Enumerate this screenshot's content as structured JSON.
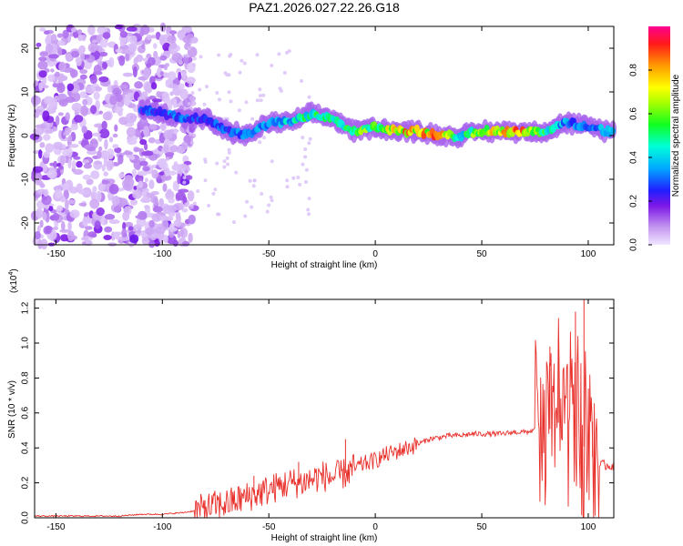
{
  "figure_title": "PAZ1.2026.027.22.26.G18",
  "chart_data": [
    {
      "type": "heatmap",
      "title": "PAZ1.2026.027.22.26.G18",
      "xlabel": "Height of straight line (km)",
      "ylabel": "Frequency (Hz)",
      "xlim": [
        -160,
        112
      ],
      "ylim": [
        -25,
        25
      ],
      "x_ticks": [
        -150,
        -100,
        -50,
        0,
        50,
        100
      ],
      "y_ticks": [
        -20,
        -10,
        0,
        10,
        20
      ],
      "x_tick_labels": [
        "-150",
        "-100",
        "-50",
        "0",
        "50",
        "100"
      ],
      "y_tick_labels": [
        "-20",
        "-10",
        "0",
        "10",
        "20"
      ],
      "colorbar": {
        "label": "Normalized spectral amplitude",
        "range": [
          0,
          1
        ],
        "ticks": [
          0.0,
          0.2,
          0.4,
          0.6,
          0.8
        ],
        "tick_labels": [
          "0.0",
          "0.2",
          "0.4",
          "0.6",
          "0.8"
        ]
      },
      "ridge": {
        "description_x": [
          -110,
          -100,
          -90,
          -80,
          -70,
          -60,
          -50,
          -40,
          -30,
          -20,
          -10,
          0,
          10,
          20,
          30,
          40,
          50,
          60,
          70,
          80,
          90,
          100,
          110
        ],
        "frequency_hz": [
          6,
          5,
          4,
          4,
          1,
          0,
          3,
          3,
          5,
          4,
          1,
          2,
          1,
          1,
          0,
          0,
          1,
          1,
          1,
          1,
          3,
          2,
          1
        ],
        "amplitude": [
          0.3,
          0.35,
          0.35,
          0.3,
          0.35,
          0.4,
          0.4,
          0.5,
          0.6,
          0.55,
          0.7,
          0.65,
          0.95,
          0.9,
          0.95,
          0.5,
          0.85,
          0.9,
          0.95,
          0.6,
          0.4,
          0.35,
          0.45
        ]
      }
    },
    {
      "type": "line",
      "xlabel": "Height of straight line (km)",
      "ylabel": "SNR (10 * v/v)",
      "scale_label": "(x10",
      "scale_exp": "4",
      "scale_suffix": ")",
      "xlim": [
        -160,
        112
      ],
      "ylim": [
        0,
        1.25
      ],
      "x_ticks": [
        -150,
        -100,
        -50,
        0,
        50,
        100
      ],
      "y_ticks": [
        0.0,
        0.2,
        0.4,
        0.6,
        0.8,
        1.0,
        1.2
      ],
      "x_tick_labels": [
        "-150",
        "-100",
        "-50",
        "0",
        "50",
        "100"
      ],
      "y_tick_labels": [
        "0.0",
        "0.2",
        "0.4",
        "0.6",
        "0.8",
        "1.0",
        "1.2"
      ],
      "color": "#e8302b",
      "series": [
        {
          "name": "SNR",
          "x": [
            -160,
            -150,
            -140,
            -130,
            -120,
            -110,
            -100,
            -90,
            -80,
            -75,
            -70,
            -65,
            -60,
            -55,
            -50,
            -45,
            -40,
            -35,
            -30,
            -25,
            -20,
            -15,
            -10,
            -5,
            0,
            5,
            10,
            15,
            20,
            25,
            30,
            35,
            40,
            45,
            50,
            55,
            60,
            65,
            70,
            75,
            80,
            85,
            90,
            95,
            100,
            105,
            112
          ],
          "y": [
            0.01,
            0.01,
            0.01,
            0.01,
            0.01,
            0.02,
            0.02,
            0.03,
            0.05,
            0.07,
            0.08,
            0.1,
            0.12,
            0.14,
            0.16,
            0.18,
            0.2,
            0.2,
            0.22,
            0.24,
            0.23,
            0.25,
            0.28,
            0.31,
            0.33,
            0.36,
            0.38,
            0.4,
            0.42,
            0.45,
            0.46,
            0.47,
            0.47,
            0.48,
            0.48,
            0.48,
            0.48,
            0.49,
            0.49,
            0.5,
            0.48,
            0.55,
            0.52,
            0.45,
            0.38,
            0.3,
            0.3
          ]
        }
      ],
      "annotations": [
        {
          "x": -80,
          "y": 0.1
        },
        {
          "x": -57,
          "y": 0.24
        },
        {
          "x": -36,
          "y": 0.32
        },
        {
          "x": -14,
          "y": 0.45
        },
        {
          "x": 82,
          "y": 0.98
        },
        {
          "x": 86,
          "y": 1.02
        },
        {
          "x": 94,
          "y": 1.18
        },
        {
          "x": 98,
          "y": 1.25
        },
        {
          "x": 102,
          "y": 0.55
        }
      ]
    }
  ]
}
